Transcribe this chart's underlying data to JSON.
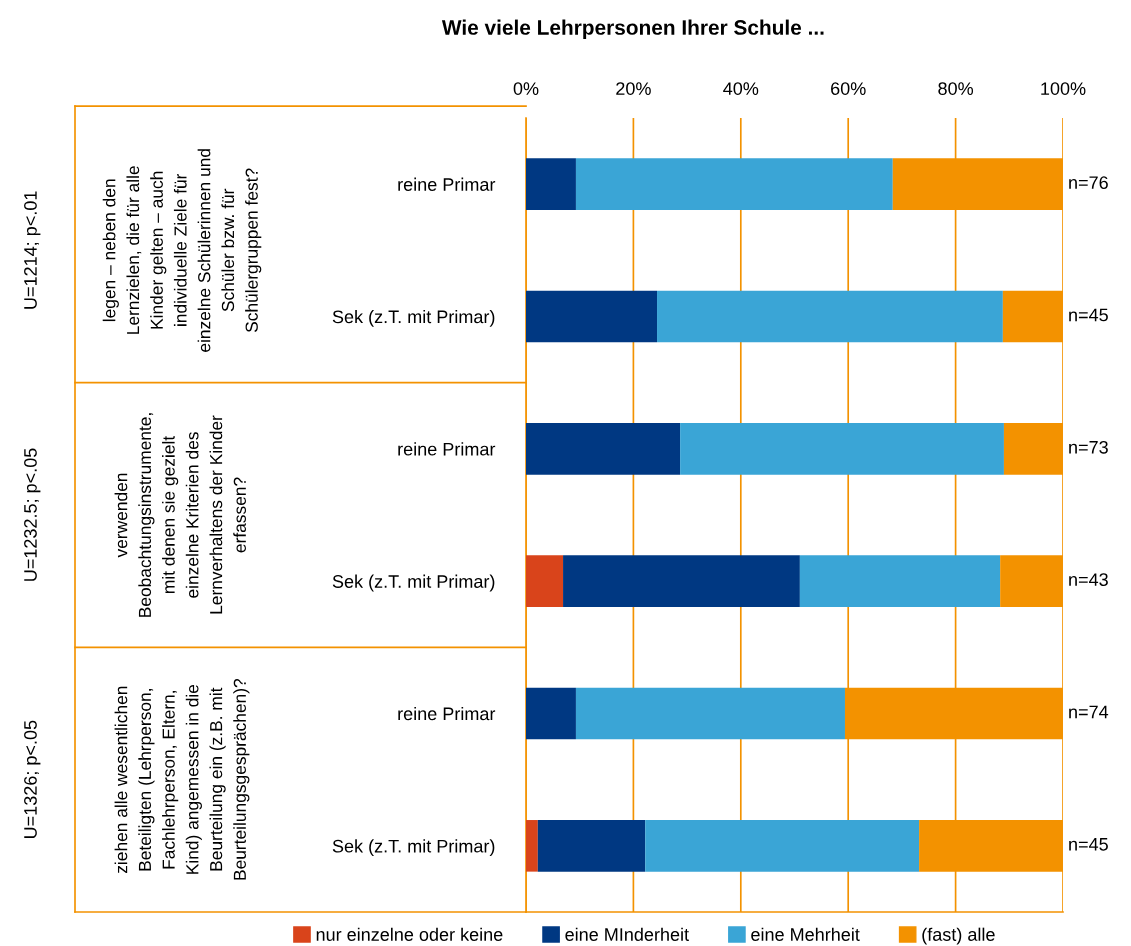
{
  "chart_data": {
    "type": "bar",
    "orientation": "horizontal",
    "stacked": true,
    "title": "Wie viele Lehrpersonen Ihrer Schule ...",
    "categories": [
      "reine Primar",
      "Sek (z.T. mit Primar)",
      "reine Primar",
      "Sek (z.T. mit Primar)",
      "reine Primar",
      "Sek (z.T. mit Primar)"
    ],
    "series": [
      {
        "name": "nur einzelne oder keine",
        "color": "#d9441b",
        "values": [
          0,
          0,
          0,
          6.9,
          0,
          2.2
        ]
      },
      {
        "name": "eine MInderheit",
        "color": "#003882",
        "values": [
          9.3,
          24.4,
          28.7,
          44.1,
          9.3,
          20.0
        ]
      },
      {
        "name": "eine Mehrheit",
        "color": "#3aa5d6",
        "values": [
          59.0,
          64.4,
          60.3,
          37.3,
          50.1,
          51.0
        ]
      },
      {
        "name": "(fast) alle",
        "color": "#f39200",
        "values": [
          31.7,
          11.2,
          11.0,
          11.7,
          40.6,
          26.8
        ]
      }
    ],
    "xlim": [
      0,
      100
    ],
    "xticks": [
      {
        "value": 0,
        "label": "0%"
      },
      {
        "value": 20,
        "label": "20%"
      },
      {
        "value": 40,
        "label": "40%"
      },
      {
        "value": 60,
        "label": "60%"
      },
      {
        "value": 80,
        "label": "80%"
      },
      {
        "value": 100,
        "label": "100%"
      }
    ],
    "grid": "x",
    "legend": "bottom",
    "annotations": [
      "n=76",
      "n=45",
      "n=73",
      "n=43",
      "n=74",
      "n=45",
      "legen – neben den\nLernzielen, die für alle\nKinder gelten – auch\nindividuelle Ziele für\neinzelne Schülerinnen und\nSchüler bzw. für\nSchülergruppen fest?",
      "verwenden\nBeobachtungsinstrumente,\nmit denen sie gezielt\neinzelne Kriterien des\nLernverhaltens der Kinder\nerfassen?",
      "ziehen alle wesentlichen\nBeteiligten (Lehrperson,\nFachlehrperson, Eltern,\nKind) angemessen in die\nBeurteilung ein (z.B. mit\nBeurteilungsgesprächen)?",
      "U=1214; p<.01",
      "U=1232.5; p<.05",
      "U=1326; p<.05"
    ]
  }
}
